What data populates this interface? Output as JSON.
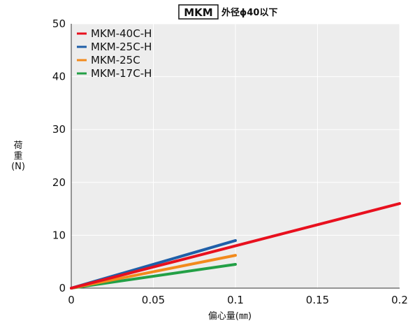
{
  "chart_data": {
    "type": "line",
    "title_box": "MKM",
    "title": "外径ϕ40以下",
    "xlabel": "偏心量(㎜)",
    "ylabel_lines": [
      "荷",
      "重",
      "(N)"
    ],
    "xlim": [
      0,
      0.2
    ],
    "ylim": [
      0,
      50
    ],
    "xticks": [
      0,
      0.05,
      0.1,
      0.15,
      0.2
    ],
    "xtick_labels": [
      "0",
      "0.05",
      "0.1",
      "0.15",
      "0.2"
    ],
    "yticks": [
      0,
      10,
      20,
      30,
      40,
      50
    ],
    "ytick_labels": [
      "0",
      "10",
      "20",
      "30",
      "40",
      "50"
    ],
    "grid": true,
    "legend_position": "top-left",
    "background_color": "#ededed",
    "series": [
      {
        "name": "MKM-40C-H",
        "color": "#e8101e",
        "x": [
          0,
          0.2
        ],
        "y": [
          0,
          16
        ]
      },
      {
        "name": "MKM-25C-H",
        "color": "#1f5fa8",
        "x": [
          0,
          0.1
        ],
        "y": [
          0,
          9
        ]
      },
      {
        "name": "MKM-25C",
        "color": "#f28a1c",
        "x": [
          0,
          0.1
        ],
        "y": [
          0,
          6.2
        ]
      },
      {
        "name": "MKM-17C-H",
        "color": "#23a046",
        "x": [
          0,
          0.1
        ],
        "y": [
          0,
          4.5
        ]
      }
    ]
  }
}
